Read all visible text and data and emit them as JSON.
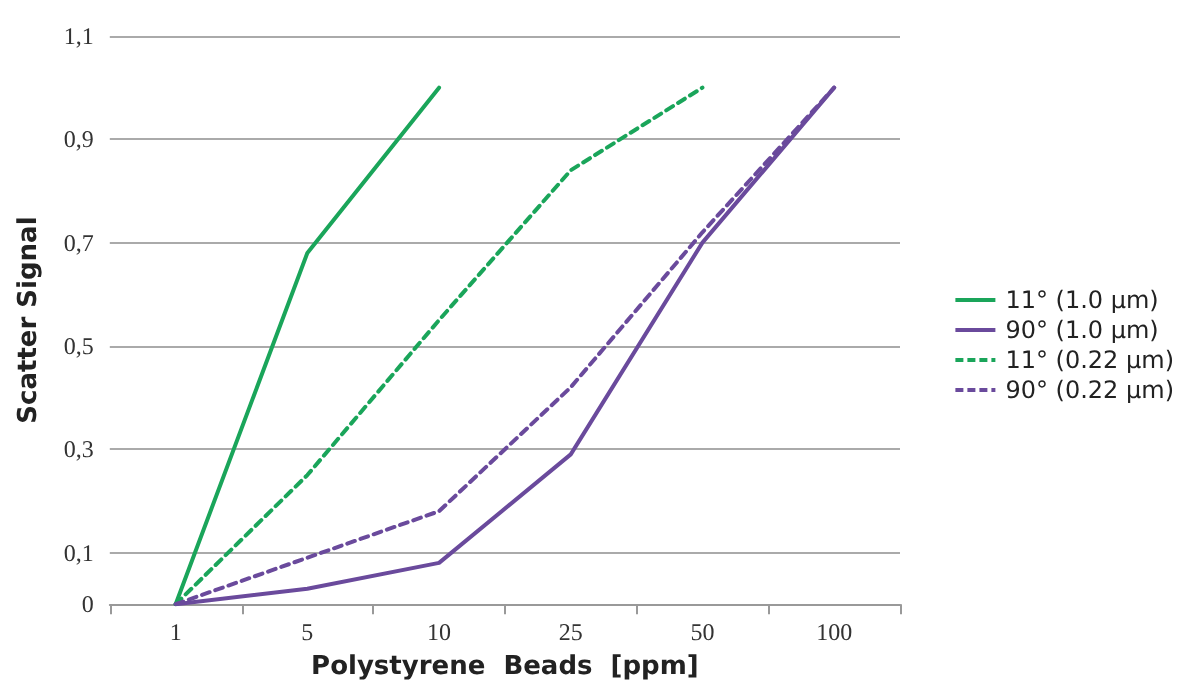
{
  "chart_data": {
    "type": "line",
    "xlabel": "Polystyrene  Beads  [ppm]",
    "ylabel": "Scatter Signal",
    "categories": [
      "1",
      "5",
      "10",
      "25",
      "50",
      "100"
    ],
    "series": [
      {
        "name": "11° (1.0 µm)",
        "color": "#1aa55a",
        "line_style": "solid",
        "values": [
          0,
          0.68,
          1.0,
          null,
          null,
          null
        ]
      },
      {
        "name": "90° (1.0 µm)",
        "color": "#6a4a9c",
        "line_style": "solid",
        "values": [
          0,
          0.03,
          0.08,
          0.29,
          0.7,
          1.0
        ]
      },
      {
        "name": "11° (0.22 µm)",
        "color": "#1aa55a",
        "line_style": "dashed",
        "values": [
          0,
          0.25,
          0.55,
          0.84,
          1.0,
          null
        ]
      },
      {
        "name": "90° (0.22 µm)",
        "color": "#6a4a9c",
        "line_style": "dashed",
        "values": [
          0,
          0.09,
          0.18,
          0.42,
          0.72,
          1.0
        ]
      }
    ],
    "ylim": [
      0,
      1.1
    ],
    "yticks": [
      0,
      {
        "value": 0.1,
        "label": "0,1"
      },
      {
        "value": 0.3,
        "label": "0,3"
      },
      {
        "value": 0.5,
        "label": "0,5"
      },
      {
        "value": 0.7,
        "label": "0,7"
      },
      {
        "value": 0.9,
        "label": "0,9"
      },
      {
        "value": 1.1,
        "label": "1,1"
      }
    ],
    "grid": "y",
    "legend": "right",
    "marker": "none"
  }
}
